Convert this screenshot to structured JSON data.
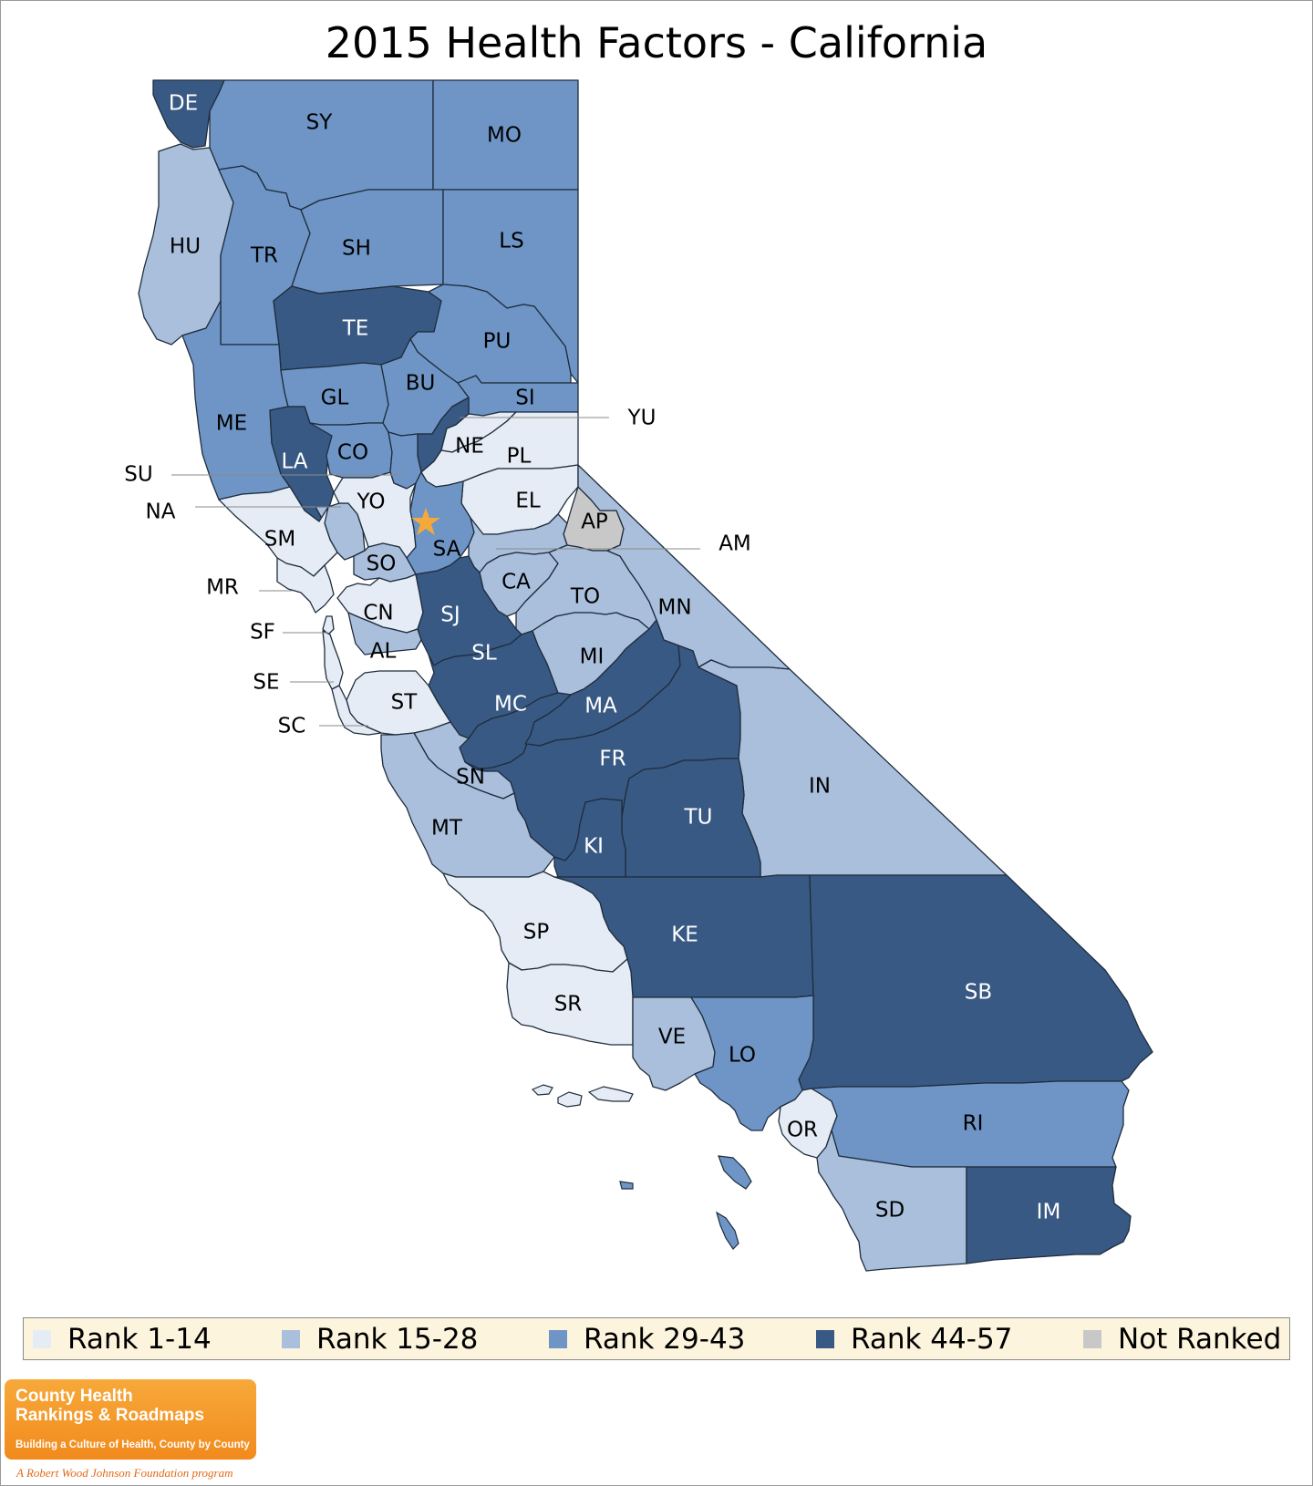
{
  "title": "2015 Health Factors - California",
  "colors": {
    "rank_1_14": "#e5ecf5",
    "rank_15_28": "#a9bfdc",
    "rank_29_43": "#6e95c6",
    "rank_44_57": "#385983",
    "not_ranked": "#c8c8c8",
    "outline": "#1f2d3d",
    "star": "#f4a93a",
    "legend_bg": "#fcf4dc"
  },
  "legend": [
    {
      "label": "Rank 1-14",
      "class": "rank_1_14"
    },
    {
      "label": "Rank 15-28",
      "class": "rank_15_28"
    },
    {
      "label": "Rank 29-43",
      "class": "rank_29_43"
    },
    {
      "label": "Rank 44-57",
      "class": "rank_44_57"
    },
    {
      "label": "Not Ranked",
      "class": "not_ranked"
    }
  ],
  "counties": [
    {
      "code": "DE",
      "class": "rank_44_57"
    },
    {
      "code": "SY",
      "class": "rank_29_43"
    },
    {
      "code": "MO",
      "class": "rank_29_43"
    },
    {
      "code": "HU",
      "class": "rank_15_28"
    },
    {
      "code": "TR",
      "class": "rank_29_43"
    },
    {
      "code": "SH",
      "class": "rank_29_43"
    },
    {
      "code": "LS",
      "class": "rank_29_43"
    },
    {
      "code": "TE",
      "class": "rank_44_57"
    },
    {
      "code": "PU",
      "class": "rank_29_43"
    },
    {
      "code": "ME",
      "class": "rank_29_43"
    },
    {
      "code": "GL",
      "class": "rank_29_43"
    },
    {
      "code": "BU",
      "class": "rank_29_43"
    },
    {
      "code": "SI",
      "class": "rank_29_43"
    },
    {
      "code": "YU",
      "class": "rank_44_57"
    },
    {
      "code": "NE",
      "class": "rank_1_14"
    },
    {
      "code": "LA",
      "class": "rank_44_57"
    },
    {
      "code": "CO",
      "class": "rank_29_43"
    },
    {
      "code": "PL",
      "class": "rank_1_14"
    },
    {
      "code": "SU",
      "class": "rank_29_43"
    },
    {
      "code": "EL",
      "class": "rank_1_14"
    },
    {
      "code": "NA",
      "class": "rank_15_28"
    },
    {
      "code": "YO",
      "class": "rank_1_14"
    },
    {
      "code": "AP",
      "class": "not_ranked"
    },
    {
      "code": "SM",
      "class": "rank_1_14"
    },
    {
      "code": "SA",
      "class": "rank_29_43"
    },
    {
      "code": "AM",
      "class": "rank_15_28"
    },
    {
      "code": "SO",
      "class": "rank_15_28"
    },
    {
      "code": "CA",
      "class": "rank_15_28"
    },
    {
      "code": "TO",
      "class": "rank_15_28"
    },
    {
      "code": "MR",
      "class": "rank_1_14"
    },
    {
      "code": "MN",
      "class": "rank_15_28"
    },
    {
      "code": "CN",
      "class": "rank_1_14"
    },
    {
      "code": "SJ",
      "class": "rank_44_57"
    },
    {
      "code": "SF",
      "class": "rank_1_14"
    },
    {
      "code": "AL",
      "class": "rank_15_28"
    },
    {
      "code": "SL",
      "class": "rank_44_57"
    },
    {
      "code": "MI",
      "class": "rank_15_28"
    },
    {
      "code": "SE",
      "class": "rank_1_14"
    },
    {
      "code": "MC",
      "class": "rank_44_57"
    },
    {
      "code": "MA",
      "class": "rank_44_57"
    },
    {
      "code": "ST",
      "class": "rank_1_14"
    },
    {
      "code": "SC",
      "class": "rank_1_14"
    },
    {
      "code": "FR",
      "class": "rank_44_57"
    },
    {
      "code": "IN",
      "class": "rank_15_28"
    },
    {
      "code": "SN",
      "class": "rank_15_28"
    },
    {
      "code": "TU",
      "class": "rank_44_57"
    },
    {
      "code": "MT",
      "class": "rank_15_28"
    },
    {
      "code": "KI",
      "class": "rank_44_57"
    },
    {
      "code": "KE",
      "class": "rank_44_57"
    },
    {
      "code": "SP",
      "class": "rank_1_14"
    },
    {
      "code": "SB",
      "class": "rank_44_57"
    },
    {
      "code": "SR",
      "class": "rank_1_14"
    },
    {
      "code": "VE",
      "class": "rank_15_28"
    },
    {
      "code": "LO",
      "class": "rank_29_43"
    },
    {
      "code": "OR",
      "class": "rank_1_14"
    },
    {
      "code": "RI",
      "class": "rank_29_43"
    },
    {
      "code": "SD",
      "class": "rank_15_28"
    },
    {
      "code": "IM",
      "class": "rank_44_57"
    }
  ],
  "logo": {
    "name_line1": "County Health",
    "name_line2": "Rankings & Roadmaps",
    "tagline": "Building a Culture of Health, County by County",
    "footer": "A Robert Wood Johnson Foundation program"
  }
}
